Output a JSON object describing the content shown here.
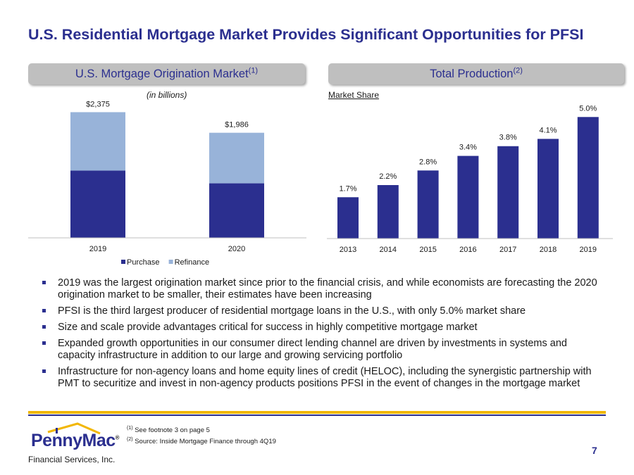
{
  "title": "U.S. Residential Mortgage Market Provides Significant Opportunities for PFSI",
  "left_panel": {
    "header": "U.S. Mortgage Origination Market",
    "header_note": "(1)",
    "units": "(in billions)"
  },
  "right_panel": {
    "header": "Total Production",
    "header_note": "(2)",
    "subtitle": "Market Share"
  },
  "chart_data": [
    {
      "type": "bar",
      "stacked": true,
      "categories": [
        "2019",
        "2020"
      ],
      "series": [
        {
          "name": "Purchase",
          "values": [
            1270,
            1030
          ],
          "color": "#2b2f8f"
        },
        {
          "name": "Refinance",
          "values": [
            1105,
            956
          ],
          "color": "#98b3d9"
        }
      ],
      "totals": [
        2375,
        1986
      ],
      "total_labels": [
        "$2,375",
        "$1,986"
      ],
      "ylim": [
        0,
        2500
      ],
      "legend": "bottom-center",
      "grid": false
    },
    {
      "type": "bar",
      "categories": [
        "2013",
        "2014",
        "2015",
        "2016",
        "2017",
        "2018",
        "2019"
      ],
      "values": [
        1.7,
        2.2,
        2.8,
        3.4,
        3.8,
        4.1,
        5.0
      ],
      "value_labels": [
        "1.7%",
        "2.2%",
        "2.8%",
        "3.4%",
        "3.8%",
        "4.1%",
        "5.0%"
      ],
      "color": "#2b2f8f",
      "ylim": [
        0,
        5.5
      ],
      "grid": false
    }
  ],
  "bullets": [
    "2019 was the largest origination market since prior to the financial crisis, and while economists are forecasting the 2020 origination market to be smaller, their estimates have been increasing",
    "PFSI is the third largest producer of residential mortgage loans in the U.S., with only 5.0% market share",
    "Size and scale provide advantages critical for success in highly competitive mortgage market",
    "Expanded growth opportunities in our consumer direct lending channel are driven by investments in systems and capacity infrastructure in addition to our large and growing servicing portfolio",
    "Infrastructure for non-agency loans and home equity lines of credit (HELOC), including the synergistic partnership with PMT to securitize and invest in non-agency products positions PFSI in the event of changes in the mortgage market"
  ],
  "footnotes": [
    {
      "mark": "(1)",
      "text": " See footnote 3 on page 5"
    },
    {
      "mark": "(2)",
      "text": " Source: Inside Mortgage Finance through 4Q19"
    }
  ],
  "logo": {
    "name": "PennyMac",
    "registered": "®",
    "tagline": "Financial Services, Inc."
  },
  "page_number": "7",
  "colors": {
    "brand_blue": "#2b2f8f",
    "light_blue": "#98b3d9",
    "gold": "#f2b705",
    "header_gray": "#bfbfbf"
  }
}
